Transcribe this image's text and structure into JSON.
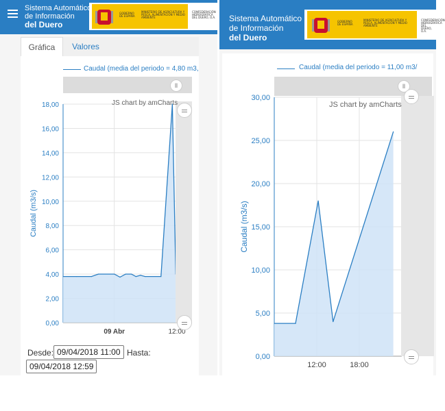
{
  "app": {
    "title_line1": "Sistema Automático",
    "title_line2": "de Información",
    "title_line3": "del Duero",
    "gov_gobierno": "GOBIERNO DE ESPAÑA",
    "gov_ministerio": "MINISTERIO DE AGRICULTURA Y PESCA, ALIMENTACIÓN Y MEDIO AMBIENTE",
    "gov_confederacion": "CONFEDERACIÓN HIDROGRÁFICA DEL DUERO, O.A."
  },
  "tabs": [
    {
      "label": "Gráfica"
    },
    {
      "label": "Valores"
    }
  ],
  "form": {
    "desde_label": "Desde:",
    "desde_value": "09/04/2018 11:00",
    "hasta_label": "Hasta:",
    "hasta_value": "09/04/2018 12:59"
  },
  "colors": {
    "header": "#2a7ec3",
    "line": "#2a7ec3",
    "fill": "#cfe3f7"
  },
  "chart_data": [
    {
      "type": "area",
      "legend": "Caudal  (media del periodo = 4,80 m3,",
      "credit": "JS chart by amCharts",
      "ylabel": "Caudal (m3/s)",
      "ylim": [
        0,
        18
      ],
      "y_ticks": [
        "0,00",
        "2,00",
        "4,00",
        "6,00",
        "8,00",
        "10,00",
        "12,00",
        "14,00",
        "16,00",
        "18,00"
      ],
      "x_ticks": [
        {
          "x": 0.45,
          "label": "09 Abr"
        },
        {
          "x": 1.0,
          "label": "12:00"
        }
      ],
      "grid": true,
      "points": [
        [
          0.0,
          3.8
        ],
        [
          0.12,
          3.8
        ],
        [
          0.25,
          3.8
        ],
        [
          0.31,
          4.0
        ],
        [
          0.45,
          4.0
        ],
        [
          0.5,
          3.75
        ],
        [
          0.55,
          4.0
        ],
        [
          0.6,
          4.0
        ],
        [
          0.64,
          3.8
        ],
        [
          0.68,
          3.9
        ],
        [
          0.72,
          3.8
        ],
        [
          0.86,
          3.8
        ],
        [
          0.96,
          18.0
        ],
        [
          0.99,
          4.0
        ]
      ]
    },
    {
      "type": "area",
      "legend": "Caudal  (media del periodo = 11,00 m3/",
      "credit": "JS chart by amCharts",
      "ylabel": "Caudal (m3/s)",
      "ylim": [
        0,
        30
      ],
      "y_ticks": [
        "0,00",
        "5,00",
        "10,00",
        "15,00",
        "20,00",
        "25,00",
        "30,00"
      ],
      "x_ticks": [
        {
          "x": 12,
          "label": "12:00"
        },
        {
          "x": 18,
          "label": "18:00"
        }
      ],
      "grid": true,
      "points": [
        [
          6.0,
          3.8
        ],
        [
          9.0,
          3.8
        ],
        [
          12.2,
          18.0
        ],
        [
          14.3,
          4.0
        ],
        [
          22.8,
          26.0
        ]
      ]
    }
  ]
}
